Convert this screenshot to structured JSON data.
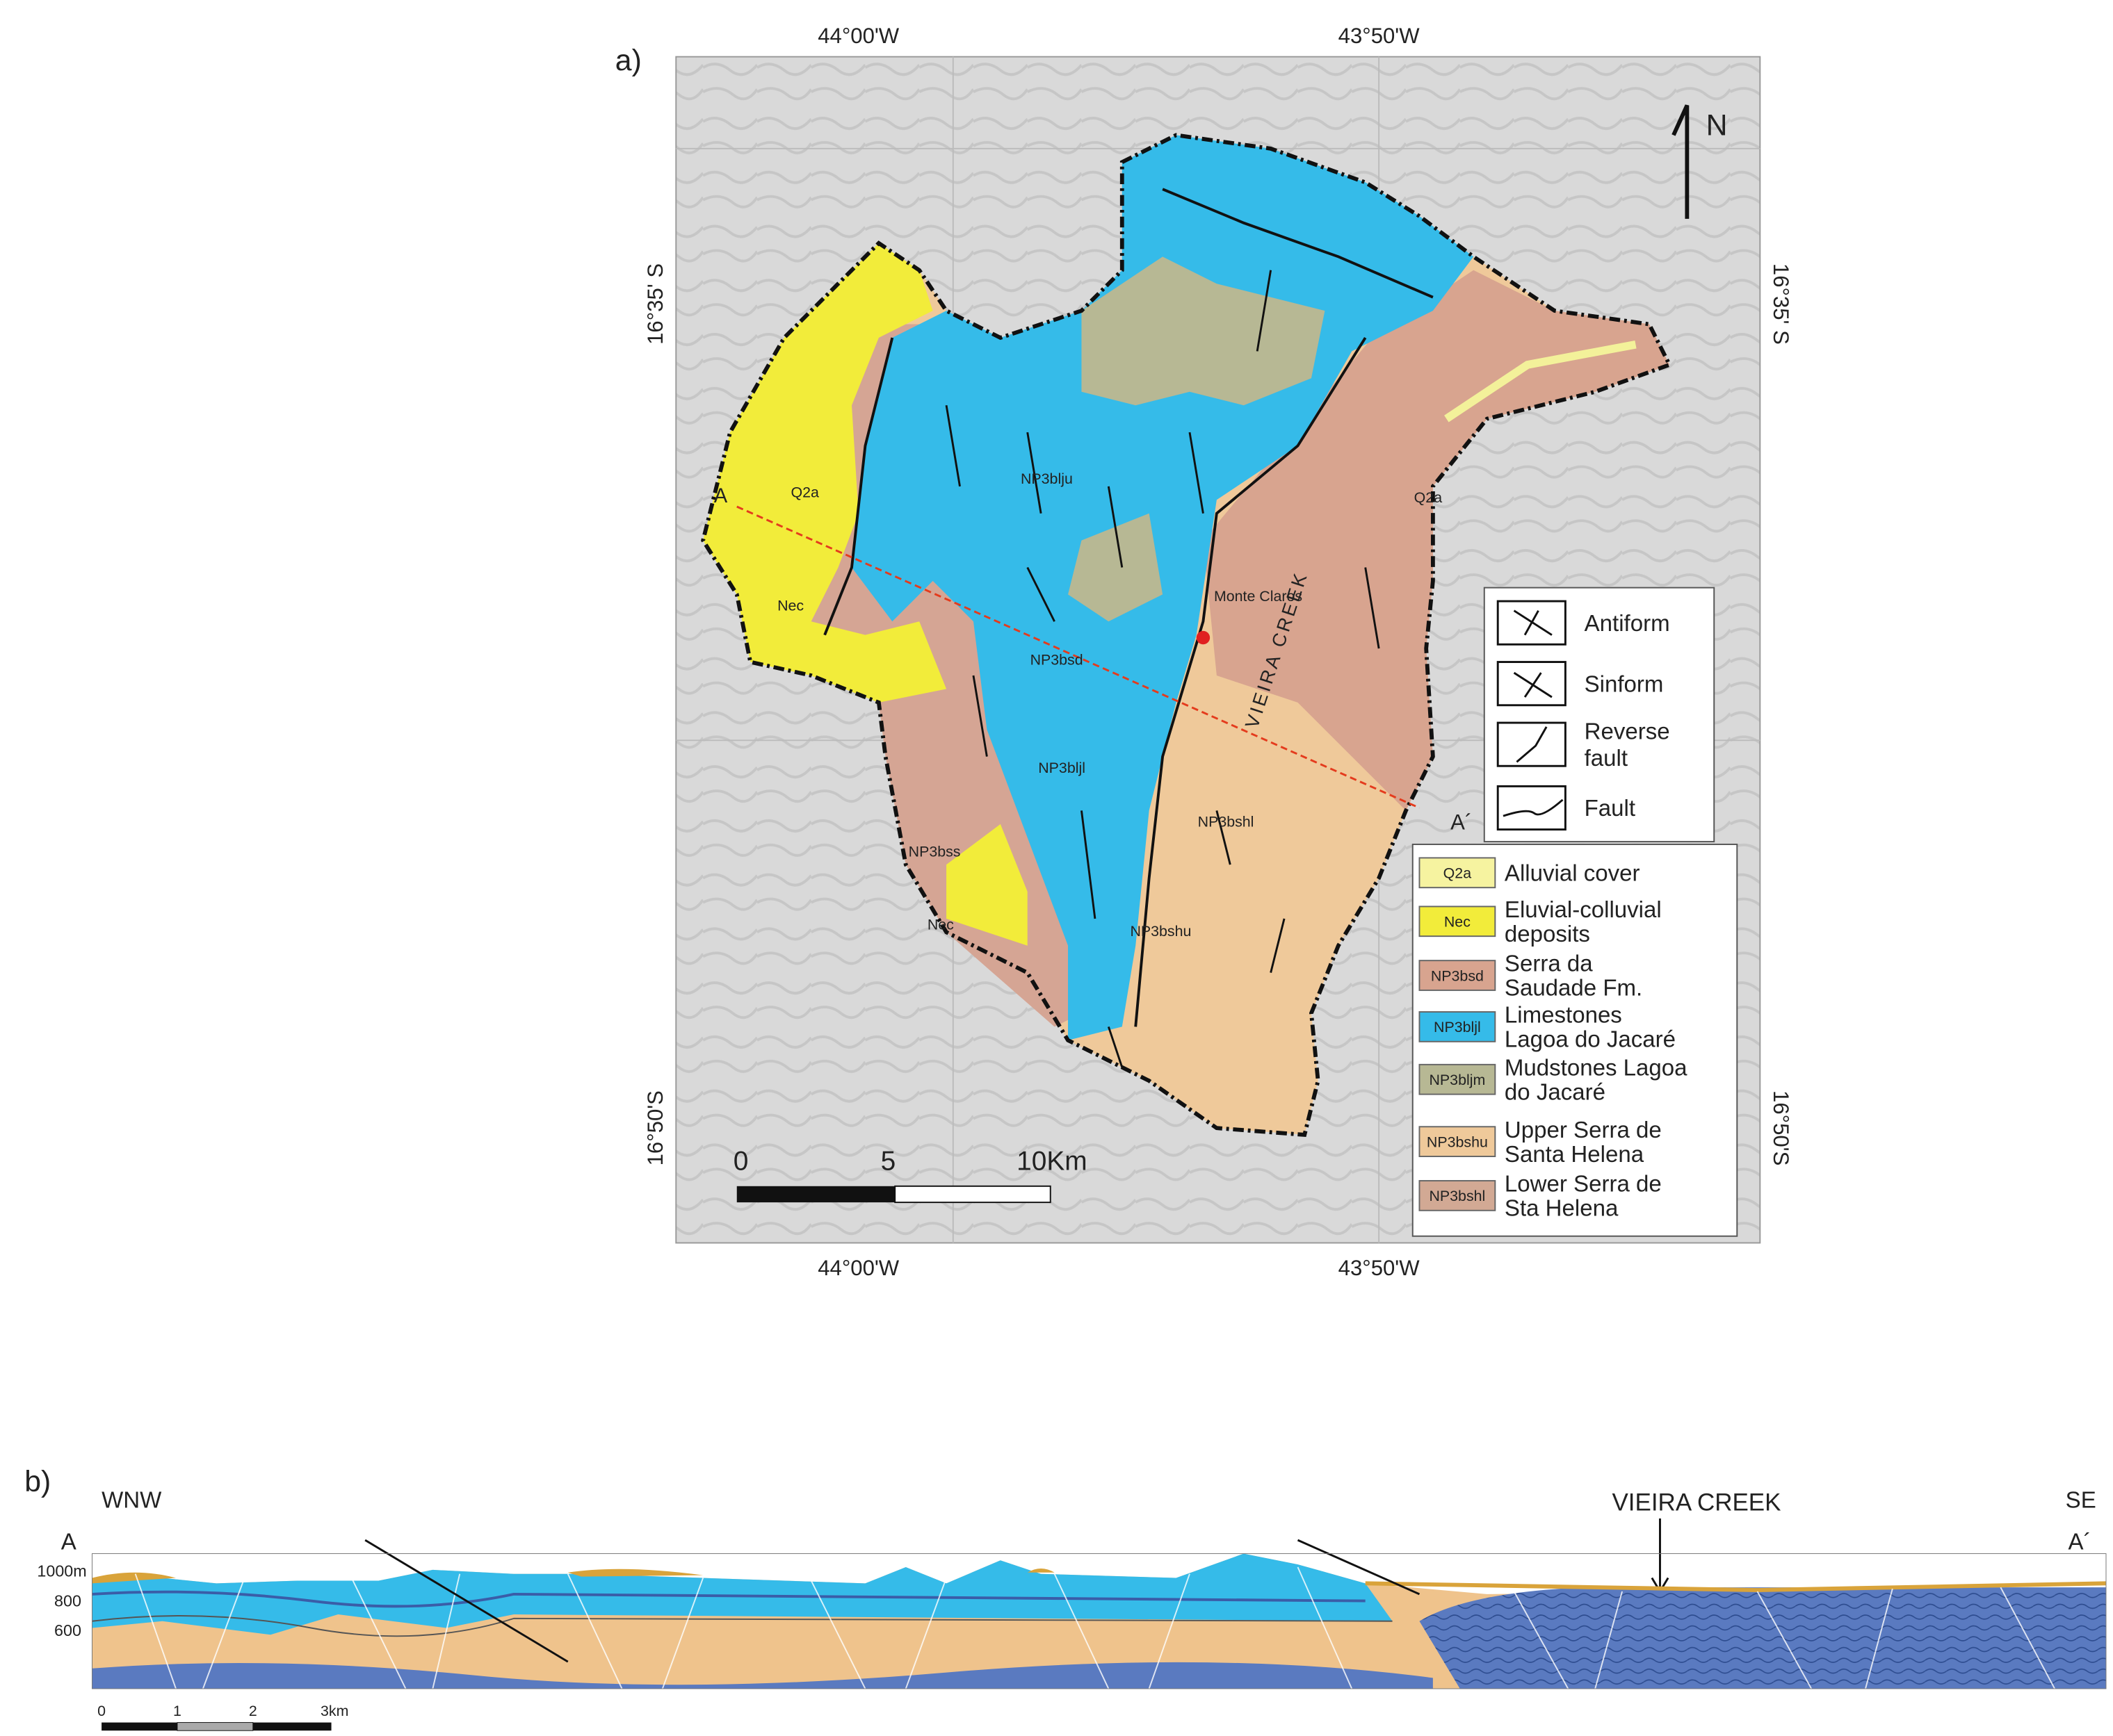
{
  "panel_a": {
    "label": "a)",
    "coords": {
      "top": [
        "44°00'W",
        "43°50'W"
      ],
      "bottom": [
        "44°00'W",
        "43°50'W"
      ],
      "left": [
        "16°35' S",
        "16°50'S"
      ],
      "right": [
        "16°35' S",
        "16°50'S"
      ]
    },
    "north": "N",
    "map_labels": [
      "Q2a",
      "Nec",
      "NP3blju",
      "NP3bsd",
      "NP3bljl",
      "NP3bss",
      "Nec",
      "Q2a",
      "NP3bshl",
      "NP3bshu",
      "Monte Claros",
      "VIEIRA CREEK",
      "A",
      "A´"
    ],
    "scale": [
      "0",
      "5",
      "10Km"
    ],
    "structure_legend": [
      [
        "Antiform"
      ],
      [
        "Sinform"
      ],
      [
        "Reverse",
        "fault"
      ],
      [
        "Fault"
      ]
    ],
    "lithology_legend": [
      {
        "code": "Q2a",
        "lines": [
          "Alluvial cover"
        ]
      },
      {
        "code": "Nec",
        "lines": [
          "Eluvial-colluvial",
          "deposits"
        ]
      },
      {
        "code": "NP3bsd",
        "lines": [
          "Serra da",
          "Saudade Fm."
        ]
      },
      {
        "code": "NP3bljl",
        "lines": [
          "Limestones",
          "Lagoa do Jacaré"
        ]
      },
      {
        "code": "NP3bljm",
        "lines": [
          "Mudstones Lagoa",
          "do Jacaré"
        ]
      },
      {
        "code": "NP3bshu",
        "lines": [
          "Upper Serra de",
          "Santa Helena"
        ]
      },
      {
        "code": "NP3bshl",
        "lines": [
          "Lower Serra de",
          "Sta Helena"
        ]
      }
    ]
  },
  "panel_b": {
    "label": "b)",
    "west": "WNW",
    "east": "SE",
    "start": "A",
    "end": "A´",
    "elevations": [
      "1000m",
      "800",
      "600"
    ],
    "creek": "VIEIRA CREEK",
    "scale": [
      "0",
      "1",
      "2",
      "3km"
    ]
  }
}
